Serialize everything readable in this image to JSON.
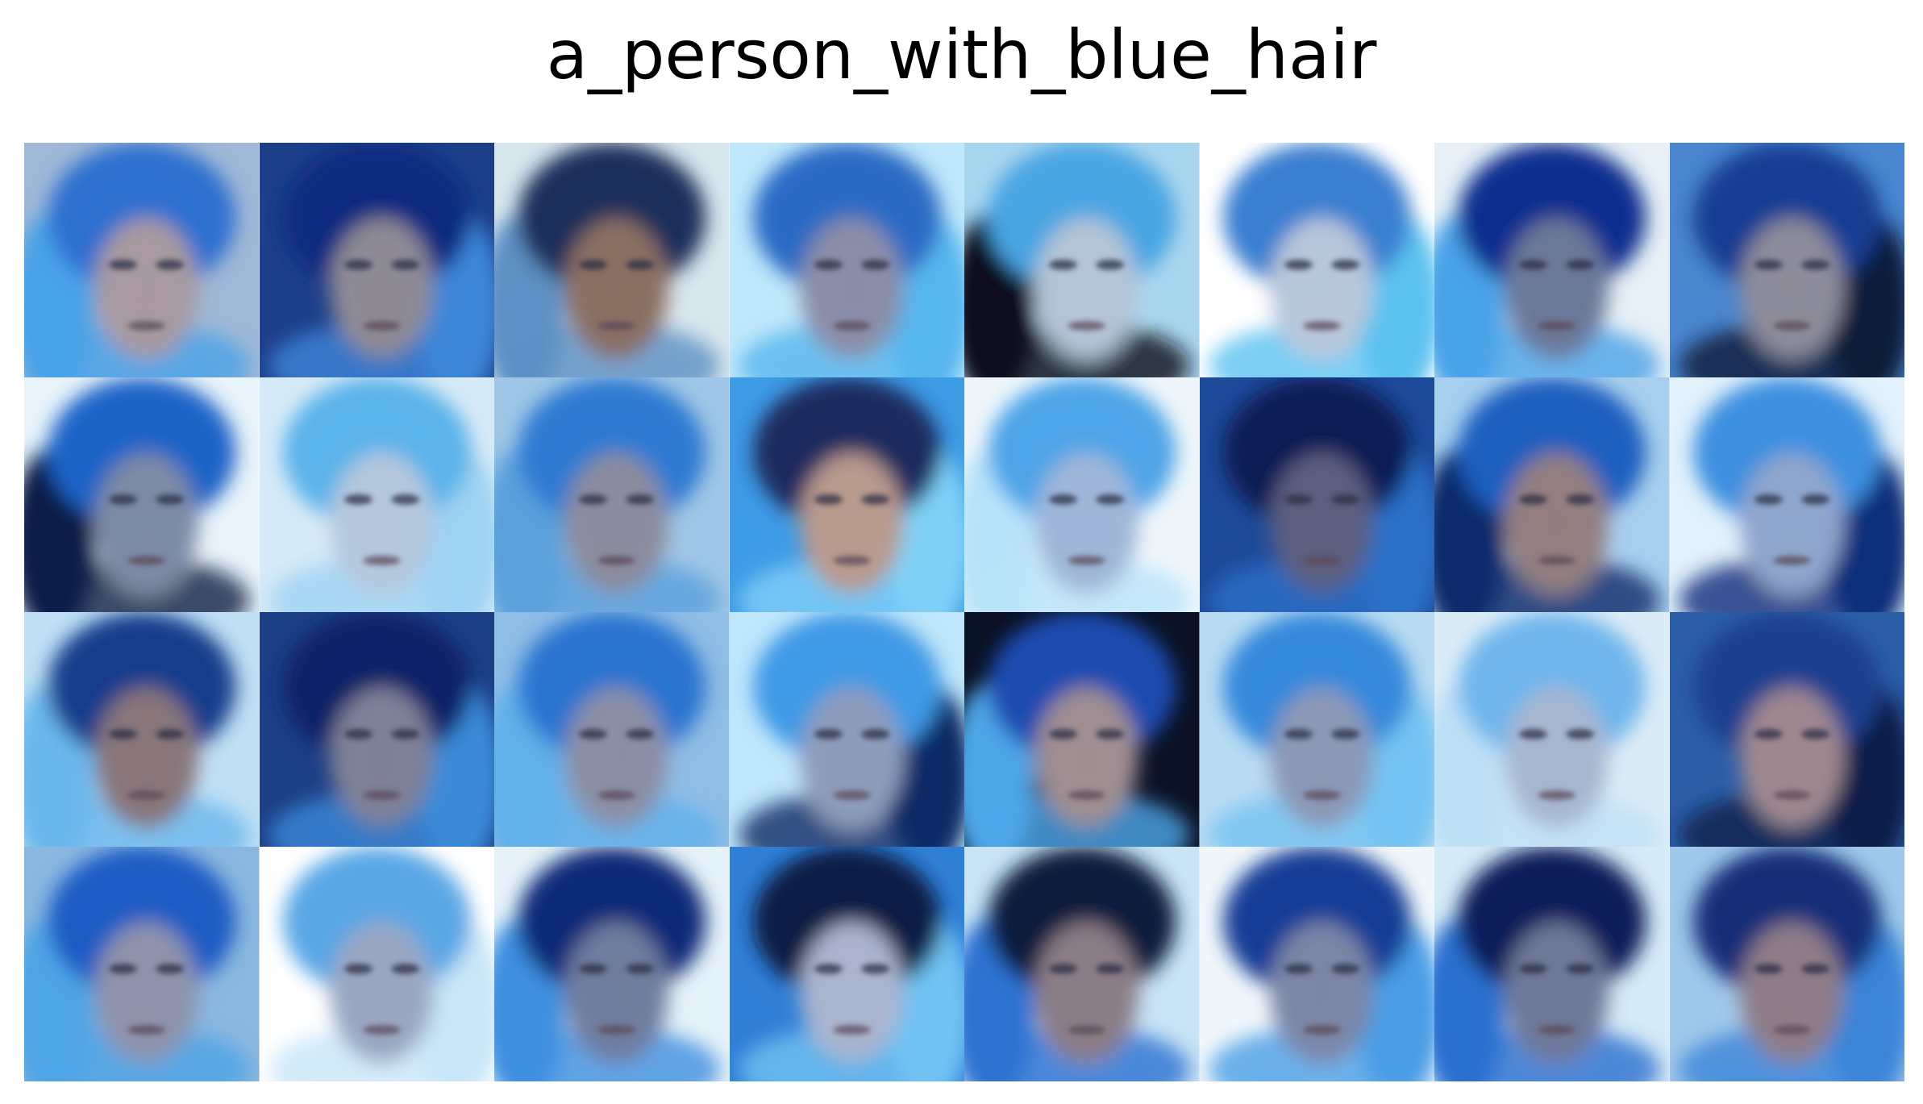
{
  "title": "a_person_with_blue_hair",
  "grid": {
    "rows": 4,
    "cols": 8,
    "tiles": [
      {
        "bg": "#9fb8d6",
        "hair": "#2f6fd0",
        "skin": "#a89aa0",
        "accent": "#4aa3e8"
      },
      {
        "bg": "#1d3f8a",
        "hair": "#0f2c80",
        "skin": "#8e8a95",
        "accent": "#3d86d8"
      },
      {
        "bg": "#d8e6ee",
        "hair": "#1c2f5a",
        "skin": "#8a6f63",
        "accent": "#5d90c4"
      },
      {
        "bg": "#bfe7fb",
        "hair": "#2a6ac4",
        "skin": "#8a8ea8",
        "accent": "#56b6ee"
      },
      {
        "bg": "#a9d6ef",
        "hair": "#4aa5e3",
        "skin": "#b4c4d6",
        "accent": "#0a0f1a"
      },
      {
        "bg": "#ffffff",
        "hair": "#3b7fd0",
        "skin": "#b8c6da",
        "accent": "#5cc2f0"
      },
      {
        "bg": "#e6f0f6",
        "hair": "#0e2f8f",
        "skin": "#6c7898",
        "accent": "#4aa3e8"
      },
      {
        "bg": "#4a86cf",
        "hair": "#183d93",
        "skin": "#8d8c9a",
        "accent": "#0d1a3a"
      },
      {
        "bg": "#e8f3fa",
        "hair": "#1f64c8",
        "skin": "#7d8aa6",
        "accent": "#0d1e46"
      },
      {
        "bg": "#d7eaf7",
        "hair": "#5ab3ea",
        "skin": "#b5c7dd",
        "accent": "#9fd3f2"
      },
      {
        "bg": "#9fc6e6",
        "hair": "#2d7ad2",
        "skin": "#8b8c9e",
        "accent": "#5aa0dc"
      },
      {
        "bg": "#3e9be6",
        "hair": "#1a2c5f",
        "skin": "#b99a8e",
        "accent": "#7fd0f7"
      },
      {
        "bg": "#eef6fb",
        "hair": "#4ea4e8",
        "skin": "#9fb6d8",
        "accent": "#b9e3fa"
      },
      {
        "bg": "#1e4a9a",
        "hair": "#0a1f55",
        "skin": "#5b5e80",
        "accent": "#2c6fc8"
      },
      {
        "bg": "#a8cfee",
        "hair": "#1d5fbf",
        "skin": "#937f80",
        "accent": "#0d2b6b"
      },
      {
        "bg": "#e2f1fb",
        "hair": "#3e90e0",
        "skin": "#8fa6cc",
        "accent": "#0e2d7a"
      },
      {
        "bg": "#bfe0f5",
        "hair": "#173c8c",
        "skin": "#88767a",
        "accent": "#6ab7ec"
      },
      {
        "bg": "#1d3f86",
        "hair": "#0c2268",
        "skin": "#7e8198",
        "accent": "#3b8ad8"
      },
      {
        "bg": "#8fbde6",
        "hair": "#2a74d0",
        "skin": "#8b8fa6",
        "accent": "#60b0ea"
      },
      {
        "bg": "#bfe6fb",
        "hair": "#3f9ae6",
        "skin": "#8e9cbc",
        "accent": "#0d2a66"
      },
      {
        "bg": "#0b1226",
        "hair": "#1a4bb0",
        "skin": "#9f8e92",
        "accent": "#4da6e8"
      },
      {
        "bg": "#b9dbf2",
        "hair": "#3489dc",
        "skin": "#8c98b6",
        "accent": "#74c3f2"
      },
      {
        "bg": "#dcecf7",
        "hair": "#6fb6ec",
        "skin": "#a7b6d0",
        "accent": "#bde0f6"
      },
      {
        "bg": "#2c5ea8",
        "hair": "#1a3f8f",
        "skin": "#9e8890",
        "accent": "#0e1f4a"
      },
      {
        "bg": "#8ab7e0",
        "hair": "#1e5cc4",
        "skin": "#8e93ab",
        "accent": "#4da4e6"
      },
      {
        "bg": "#ffffff",
        "hair": "#5aa7e6",
        "skin": "#9aa6c2",
        "accent": "#c8e6f8"
      },
      {
        "bg": "#e6f2f9",
        "hair": "#0d2b78",
        "skin": "#6f7d9e",
        "accent": "#3d8fe0"
      },
      {
        "bg": "#2f7fd6",
        "hair": "#0a1a44",
        "skin": "#aab4cf",
        "accent": "#6fc2f2"
      },
      {
        "bg": "#c8e4f6",
        "hair": "#0e1c3c",
        "skin": "#8b7d86",
        "accent": "#2d72d2"
      },
      {
        "bg": "#f0f7fb",
        "hair": "#163c96",
        "skin": "#7c86a6",
        "accent": "#4a9ee6"
      },
      {
        "bg": "#d6eaf7",
        "hair": "#0b1e5a",
        "skin": "#6e7898",
        "accent": "#2a6fd0"
      },
      {
        "bg": "#9fc8ea",
        "hair": "#132f78",
        "skin": "#8e7d88",
        "accent": "#3b84d8"
      }
    ]
  }
}
